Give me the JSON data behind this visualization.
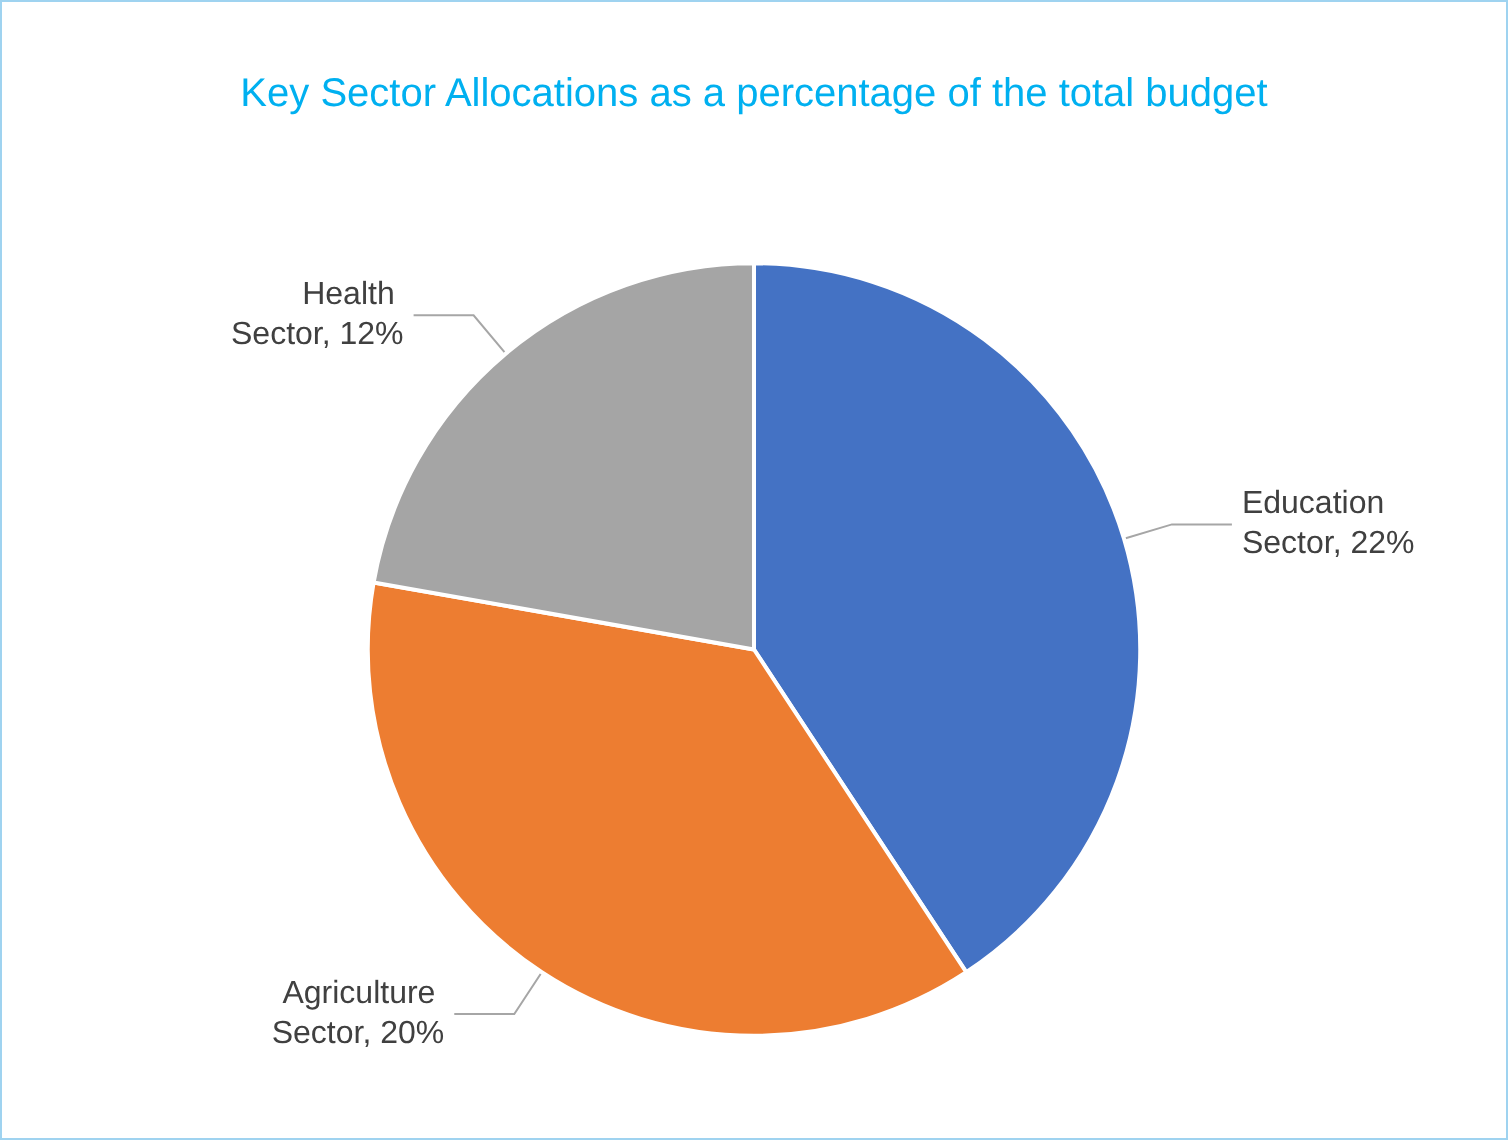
{
  "chart_data": {
    "type": "pie",
    "title": "Key Sector Allocations as a percentage of the total budget",
    "categories": [
      "Education Sector",
      "Agriculture Sector",
      "Health Sector"
    ],
    "values": [
      22,
      20,
      12
    ],
    "value_labels": [
      "22%",
      "20%",
      "12%"
    ],
    "colors": [
      "#4472c4",
      "#ed7d31",
      "#a5a5a5"
    ]
  }
}
